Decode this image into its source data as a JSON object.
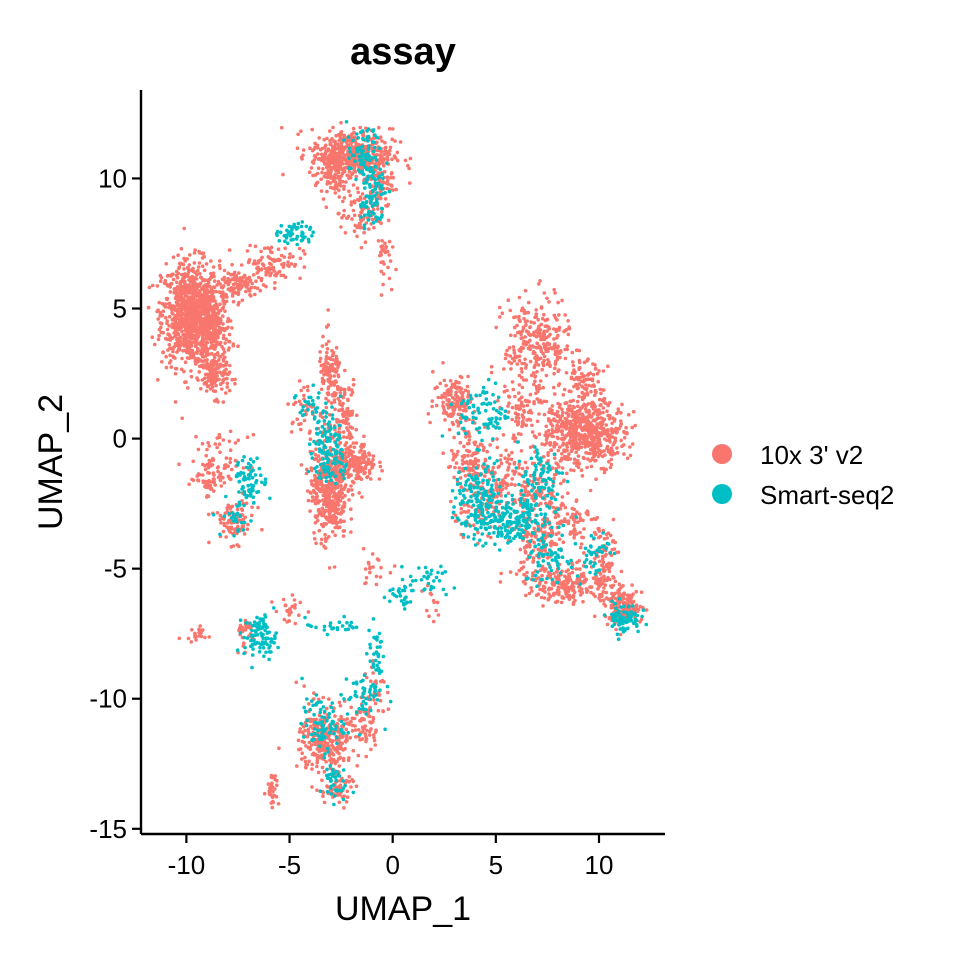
{
  "chart_data": {
    "type": "scatter",
    "title": "assay",
    "xlabel": "UMAP_1",
    "ylabel": "UMAP_2",
    "xlim": [
      -12.2,
      13.2
    ],
    "ylim": [
      -15.2,
      13.4
    ],
    "xticks": [
      -10,
      -5,
      0,
      5,
      10
    ],
    "yticks": [
      -15,
      -10,
      -5,
      0,
      5,
      10
    ],
    "xtick_labels": [
      "-10",
      "-5",
      "0",
      "5",
      "10"
    ],
    "ytick_labels": [
      "-15",
      "-10",
      "-5",
      "0",
      "5",
      "10"
    ],
    "grid": false,
    "legend_position": "right",
    "series": [
      {
        "name": "10x 3' v2",
        "color": "#F8766D",
        "clusters": [
          {
            "cx": -9.8,
            "cy": 4.8,
            "sx": 0.7,
            "sy": 1.0,
            "n": 900
          },
          {
            "cx": -8.8,
            "cy": 4.3,
            "sx": 0.5,
            "sy": 0.7,
            "n": 250
          },
          {
            "cx": -8.6,
            "cy": 2.4,
            "sx": 0.35,
            "sy": 0.4,
            "n": 120
          },
          {
            "cx": -7.5,
            "cy": 5.9,
            "sx": 0.6,
            "sy": 0.3,
            "n": 120
          },
          {
            "cx": -5.8,
            "cy": 6.8,
            "sx": 0.7,
            "sy": 0.35,
            "n": 90
          },
          {
            "cx": -2.0,
            "cy": 10.9,
            "sx": 1.0,
            "sy": 0.5,
            "n": 420
          },
          {
            "cx": -2.9,
            "cy": 10.4,
            "sx": 0.3,
            "sy": 0.5,
            "n": 100
          },
          {
            "cx": -0.7,
            "cy": 10.0,
            "sx": 0.35,
            "sy": 0.7,
            "n": 100
          },
          {
            "cx": -1.6,
            "cy": 8.6,
            "sx": 0.5,
            "sy": 0.5,
            "n": 80
          },
          {
            "cx": -0.5,
            "cy": 7.0,
            "sx": 0.2,
            "sy": 0.5,
            "n": 30
          },
          {
            "cx": -3.1,
            "cy": -1.9,
            "sx": 0.45,
            "sy": 1.0,
            "n": 420
          },
          {
            "cx": -1.8,
            "cy": -1.0,
            "sx": 0.5,
            "sy": 0.4,
            "n": 200
          },
          {
            "cx": -3.0,
            "cy": 2.3,
            "sx": 0.3,
            "sy": 0.8,
            "n": 110
          },
          {
            "cx": -2.3,
            "cy": 1.1,
            "sx": 0.3,
            "sy": 0.6,
            "n": 70
          },
          {
            "cx": -4.3,
            "cy": 1.2,
            "sx": 0.4,
            "sy": 0.4,
            "n": 40
          },
          {
            "cx": -8.4,
            "cy": -0.9,
            "sx": 0.7,
            "sy": 0.5,
            "n": 70
          },
          {
            "cx": -7.7,
            "cy": -3.2,
            "sx": 0.5,
            "sy": 0.4,
            "n": 90
          },
          {
            "cx": -8.8,
            "cy": -1.7,
            "sx": 0.4,
            "sy": 0.3,
            "n": 40
          },
          {
            "cx": 7.0,
            "cy": 3.6,
            "sx": 0.8,
            "sy": 0.9,
            "n": 280
          },
          {
            "cx": 9.7,
            "cy": 0.2,
            "sx": 0.8,
            "sy": 0.6,
            "n": 400
          },
          {
            "cx": 8.2,
            "cy": 0.3,
            "sx": 0.6,
            "sy": 0.7,
            "n": 170
          },
          {
            "cx": 9.2,
            "cy": 2.0,
            "sx": 0.5,
            "sy": 0.5,
            "n": 100
          },
          {
            "cx": 6.3,
            "cy": 1.0,
            "sx": 0.5,
            "sy": 0.6,
            "n": 90
          },
          {
            "cx": 3.0,
            "cy": 1.5,
            "sx": 0.5,
            "sy": 0.5,
            "n": 130
          },
          {
            "cx": 3.8,
            "cy": -0.6,
            "sx": 0.5,
            "sy": 0.6,
            "n": 100
          },
          {
            "cx": 5.2,
            "cy": -1.6,
            "sx": 0.8,
            "sy": 0.6,
            "n": 110
          },
          {
            "cx": 4.1,
            "cy": -2.8,
            "sx": 0.7,
            "sy": 0.5,
            "n": 70
          },
          {
            "cx": 7.1,
            "cy": -2.2,
            "sx": 0.7,
            "sy": 0.6,
            "n": 120
          },
          {
            "cx": 7.0,
            "cy": -4.1,
            "sx": 0.6,
            "sy": 0.6,
            "n": 130
          },
          {
            "cx": 8.6,
            "cy": -5.6,
            "sx": 1.1,
            "sy": 0.35,
            "n": 220
          },
          {
            "cx": 11.2,
            "cy": -6.5,
            "sx": 0.45,
            "sy": 0.35,
            "n": 160
          },
          {
            "cx": 10.2,
            "cy": -4.5,
            "sx": 0.4,
            "sy": 0.6,
            "n": 80
          },
          {
            "cx": 8.6,
            "cy": -3.0,
            "sx": 0.5,
            "sy": 0.4,
            "n": 60
          },
          {
            "cx": -3.5,
            "cy": -11.6,
            "sx": 0.5,
            "sy": 0.7,
            "n": 220
          },
          {
            "cx": -2.5,
            "cy": -11.5,
            "sx": 0.4,
            "sy": 0.6,
            "n": 80
          },
          {
            "cx": -1.3,
            "cy": -11.0,
            "sx": 0.3,
            "sy": 0.6,
            "n": 60
          },
          {
            "cx": -2.7,
            "cy": -13.5,
            "sx": 0.4,
            "sy": 0.3,
            "n": 60
          },
          {
            "cx": -5.8,
            "cy": -13.4,
            "sx": 0.15,
            "sy": 0.35,
            "n": 35
          },
          {
            "cx": -0.9,
            "cy": -9.5,
            "sx": 0.3,
            "sy": 0.4,
            "n": 25
          },
          {
            "cx": -7.1,
            "cy": -7.4,
            "sx": 0.3,
            "sy": 0.3,
            "n": 30
          },
          {
            "cx": -9.5,
            "cy": -7.6,
            "sx": 0.3,
            "sy": 0.2,
            "n": 20
          },
          {
            "cx": -5.0,
            "cy": -6.6,
            "sx": 0.35,
            "sy": 0.3,
            "n": 25
          },
          {
            "cx": -1.0,
            "cy": -5.0,
            "sx": 0.4,
            "sy": 0.3,
            "n": 20
          },
          {
            "cx": 1.9,
            "cy": -6.4,
            "sx": 0.2,
            "sy": 0.4,
            "n": 12
          }
        ]
      },
      {
        "name": "Smart-seq2",
        "color": "#00BFC4",
        "clusters": [
          {
            "cx": -1.4,
            "cy": 10.8,
            "sx": 0.4,
            "sy": 0.6,
            "n": 90
          },
          {
            "cx": -0.9,
            "cy": 9.5,
            "sx": 0.3,
            "sy": 0.5,
            "n": 50
          },
          {
            "cx": -1.2,
            "cy": 8.7,
            "sx": 0.3,
            "sy": 0.3,
            "n": 20
          },
          {
            "cx": -4.7,
            "cy": 7.9,
            "sx": 0.4,
            "sy": 0.25,
            "n": 50
          },
          {
            "cx": -3.2,
            "cy": 0.2,
            "sx": 0.35,
            "sy": 0.6,
            "n": 70
          },
          {
            "cx": -3.0,
            "cy": -1.0,
            "sx": 0.4,
            "sy": 0.4,
            "n": 60
          },
          {
            "cx": -4.0,
            "cy": 1.3,
            "sx": 0.3,
            "sy": 0.4,
            "n": 25
          },
          {
            "cx": -6.9,
            "cy": -1.6,
            "sx": 0.4,
            "sy": 0.4,
            "n": 70
          },
          {
            "cx": -7.5,
            "cy": -3.0,
            "sx": 0.4,
            "sy": 0.4,
            "n": 30
          },
          {
            "cx": 4.2,
            "cy": -2.4,
            "sx": 0.6,
            "sy": 0.7,
            "n": 150
          },
          {
            "cx": 5.7,
            "cy": -3.2,
            "sx": 0.9,
            "sy": 0.5,
            "n": 190
          },
          {
            "cx": 4.4,
            "cy": 1.0,
            "sx": 0.6,
            "sy": 0.6,
            "n": 80
          },
          {
            "cx": 7.2,
            "cy": -1.5,
            "sx": 0.6,
            "sy": 0.7,
            "n": 80
          },
          {
            "cx": 7.6,
            "cy": -4.6,
            "sx": 0.6,
            "sy": 0.5,
            "n": 60
          },
          {
            "cx": 11.2,
            "cy": -6.9,
            "sx": 0.4,
            "sy": 0.3,
            "n": 80
          },
          {
            "cx": 9.7,
            "cy": -4.4,
            "sx": 0.4,
            "sy": 0.5,
            "n": 40
          },
          {
            "cx": -6.4,
            "cy": -7.6,
            "sx": 0.4,
            "sy": 0.4,
            "n": 90
          },
          {
            "cx": -3.4,
            "cy": -11.0,
            "sx": 0.5,
            "sy": 0.5,
            "n": 80
          },
          {
            "cx": -1.5,
            "cy": -9.9,
            "sx": 0.5,
            "sy": 0.5,
            "n": 50
          },
          {
            "cx": -2.9,
            "cy": -13.2,
            "sx": 0.3,
            "sy": 0.4,
            "n": 40
          },
          {
            "cx": -0.8,
            "cy": -8.2,
            "sx": 0.2,
            "sy": 0.6,
            "n": 35
          },
          {
            "cx": 0.3,
            "cy": -6.0,
            "sx": 0.4,
            "sy": 0.3,
            "n": 30
          },
          {
            "cx": 1.8,
            "cy": -5.5,
            "sx": 0.5,
            "sy": 0.3,
            "n": 30
          },
          {
            "cx": -2.8,
            "cy": -7.2,
            "sx": 0.7,
            "sy": 0.15,
            "n": 25
          }
        ]
      }
    ]
  }
}
